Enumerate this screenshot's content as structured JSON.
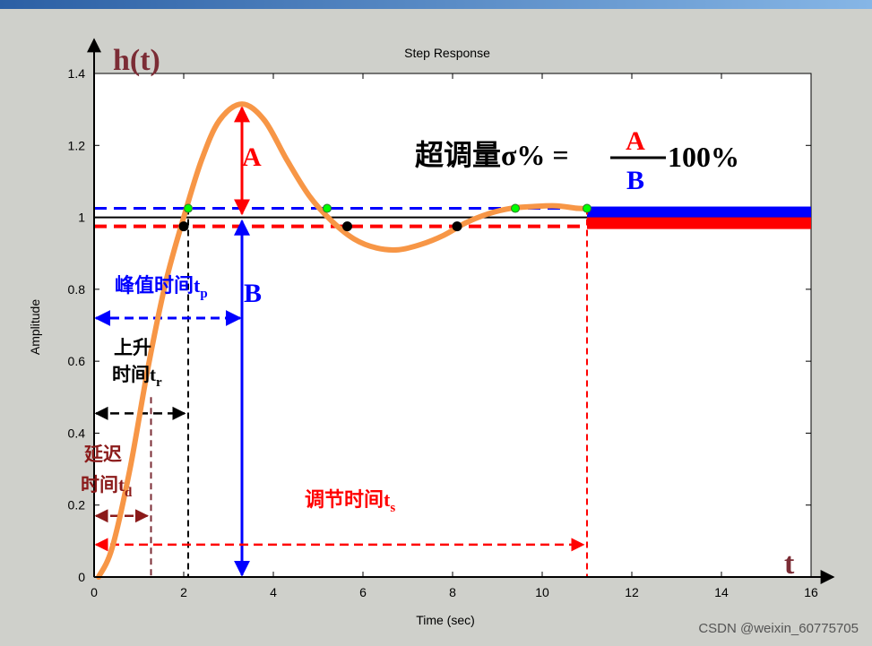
{
  "chart_data": {
    "type": "line",
    "title": "Step Response",
    "xlabel": "Time (sec)",
    "ylabel": "Amplitude",
    "xlim": [
      0,
      16
    ],
    "ylim": [
      0,
      1.4
    ],
    "x_ticks": [
      "0",
      "2",
      "4",
      "6",
      "8",
      "10",
      "12",
      "14",
      "16"
    ],
    "y_ticks": [
      "0",
      "0.2",
      "0.4",
      "0.6",
      "0.8",
      "1",
      "1.2",
      "1.4"
    ],
    "grid": false,
    "series": [
      {
        "x": [
          0.1,
          0.4,
          0.8,
          1.2,
          1.6,
          2.0,
          2.4,
          2.8,
          3.3,
          3.8,
          4.3,
          4.8,
          5.3,
          5.8,
          6.3,
          6.8,
          7.3,
          7.8,
          8.3,
          8.8,
          9.3,
          9.8,
          10.3,
          10.8,
          11.0
        ],
        "y": [
          0,
          0.08,
          0.3,
          0.58,
          0.82,
          1.0,
          1.16,
          1.27,
          1.315,
          1.27,
          1.16,
          1.06,
          0.99,
          0.94,
          0.915,
          0.91,
          0.925,
          0.95,
          0.985,
          1.01,
          1.025,
          1.03,
          1.032,
          1.025,
          1.025
        ],
        "color": "#f79646"
      }
    ],
    "steady_state": 1.0,
    "band_upper": 1.025,
    "band_lower": 0.975,
    "peak": {
      "x": 3.3,
      "y": 1.315
    },
    "rise_time": 2.1,
    "delay_time": 1.27,
    "settling_time": 11.0,
    "band_crossings": [
      {
        "x": 2.1,
        "y": 1.025
      },
      {
        "x": 5.2,
        "y": 1.025
      },
      {
        "x": 9.4,
        "y": 1.025
      },
      {
        "x": 11.0,
        "y": 1.025
      }
    ],
    "steady_crossings": [
      {
        "x": 2.0,
        "y": 0.975
      },
      {
        "x": 5.65,
        "y": 0.975
      },
      {
        "x": 8.1,
        "y": 0.975
      }
    ],
    "settled_segment": {
      "x_start": 11.0,
      "x_end": 16.0
    }
  },
  "annotations": {
    "h_label": "h(t)",
    "t_label": "t",
    "overshoot_text": "超调量σ% =",
    "frac_num": "A",
    "frac_den": "B",
    "frac_tail": "100%",
    "label_A": "A",
    "label_B": "B",
    "peak_time_main": "峰值时间t",
    "peak_time_sub": "p",
    "rise_line1": "上升",
    "rise_line2": "时间t",
    "rise_sub": "r",
    "delay_line1": "延迟",
    "delay_line2": "时间t",
    "delay_sub": "d",
    "settle_main": "调节时间t",
    "settle_sub": "s",
    "watermark": "CSDN @weixin_60775705"
  },
  "colors": {
    "frame_bg": "#cfd0cb",
    "plot_bg": "#ffffff",
    "response": "#f79646",
    "red": "#ff0000",
    "blue": "#0000ff",
    "dark_red": "#8b1a1a",
    "maroon": "#7b2c35",
    "green": "#00ff00",
    "top_bar": "#3d7fc0"
  }
}
